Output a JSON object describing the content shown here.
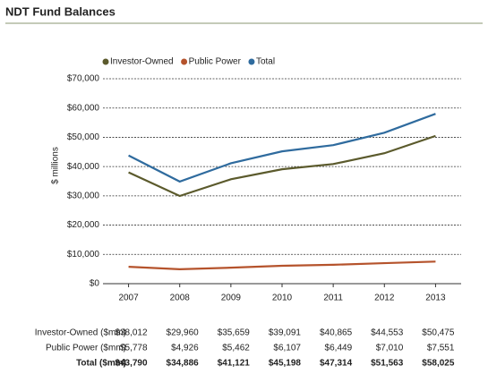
{
  "chart_data": {
    "type": "line",
    "title": "NDT Fund Balances",
    "y_label": "$ millions",
    "categories": [
      "2007",
      "2008",
      "2009",
      "2010",
      "2011",
      "2012",
      "2013"
    ],
    "series": [
      {
        "name": "Investor-Owned",
        "table_label": "Investor-Owned ($mm)",
        "color": "#5b5a2c",
        "values": [
          38012,
          29960,
          35659,
          39091,
          40865,
          44553,
          50475
        ],
        "value_labels": [
          "$38,012",
          "$29,960",
          "$35,659",
          "$39,091",
          "$40,865",
          "$44,553",
          "$50,475"
        ]
      },
      {
        "name": "Public Power",
        "table_label": "Public Power ($mm)",
        "color": "#b5532c",
        "values": [
          5778,
          4926,
          5462,
          6107,
          6449,
          7010,
          7551
        ],
        "value_labels": [
          "$5,778",
          "$4,926",
          "$5,462",
          "$6,107",
          "$6,449",
          "$7,010",
          "$7,551"
        ]
      },
      {
        "name": "Total",
        "table_label": "Total ($mm)",
        "color": "#2f6b9e",
        "values": [
          43790,
          34886,
          41121,
          45198,
          47314,
          51563,
          58025
        ],
        "value_labels": [
          "$43,790",
          "$34,886",
          "$41,121",
          "$45,198",
          "$47,314",
          "$51,563",
          "$58,025"
        ]
      }
    ],
    "ylim": [
      0,
      70000
    ],
    "yticks": [
      {
        "value": 0,
        "label": "$0"
      },
      {
        "value": 10000,
        "label": "$10,000"
      },
      {
        "value": 20000,
        "label": "$20,000"
      },
      {
        "value": 30000,
        "label": "$30,000"
      },
      {
        "value": 40000,
        "label": "$40,000"
      },
      {
        "value": 50000,
        "label": "$50,000"
      },
      {
        "value": 60000,
        "label": "$60,000"
      },
      {
        "value": 70000,
        "label": "$70,000"
      }
    ],
    "grid": true,
    "legend": "top"
  }
}
